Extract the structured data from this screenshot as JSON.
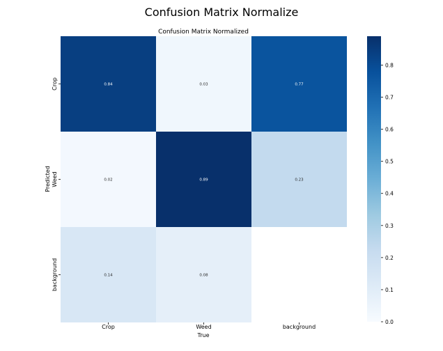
{
  "page_title": "Confusion Matrix Normalize",
  "chart_data": {
    "type": "heatmap",
    "title": "Confusion Matrix Normalized",
    "xlabel": "True",
    "ylabel": "Predicted",
    "x_categories": [
      "Crop",
      "Weed",
      "background"
    ],
    "y_categories": [
      "Crop",
      "Weed",
      "background"
    ],
    "values": [
      [
        0.84,
        0.03,
        0.77
      ],
      [
        0.02,
        0.89,
        0.23
      ],
      [
        0.14,
        0.08,
        null
      ]
    ],
    "value_labels": [
      [
        "0.84",
        "0.03",
        "0.77"
      ],
      [
        "0.02",
        "0.89",
        "0.23"
      ],
      [
        "0.14",
        "0.08",
        ""
      ]
    ],
    "colormap": "Blues",
    "color_range": [
      0.0,
      0.89
    ],
    "colorbar_ticks": [
      "0.0",
      "0.1",
      "0.2",
      "0.3",
      "0.4",
      "0.5",
      "0.6",
      "0.7",
      "0.8"
    ],
    "colorbar_tick_values": [
      0,
      0.1,
      0.2,
      0.3,
      0.4,
      0.5,
      0.6,
      0.7,
      0.8
    ]
  }
}
